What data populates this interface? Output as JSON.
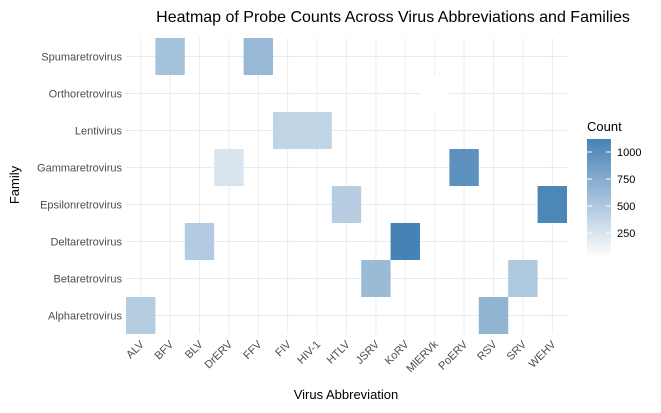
{
  "chart_data": {
    "type": "heatmap",
    "title": "Heatmap of Probe Counts Across Virus Abbreviations and Families",
    "xlabel": "Virus Abbreviation",
    "ylabel": "Family",
    "x_categories": [
      "ALV",
      "BFV",
      "BLV",
      "DrERV",
      "FFV",
      "FIV",
      "HIV-1",
      "HTLV",
      "JSRV",
      "KoRV",
      "MlERVk",
      "PoERV",
      "RSV",
      "SRV",
      "WEHV"
    ],
    "y_categories": [
      "Alpharetrovirus",
      "Betaretrovirus",
      "Deltaretrovirus",
      "Epsilonretrovirus",
      "Gammaretrovirus",
      "Lentivirus",
      "Orthoretrovirus",
      "Spumaretrovirus"
    ],
    "cells": [
      {
        "x": "BFV",
        "y": "Spumaretrovirus",
        "value": 560
      },
      {
        "x": "FFV",
        "y": "Spumaretrovirus",
        "value": 640
      },
      {
        "x": "MlERVk",
        "y": "Orthoretrovirus",
        "value": 20
      },
      {
        "x": "FIV",
        "y": "Lentivirus",
        "value": 400
      },
      {
        "x": "HIV-1",
        "y": "Lentivirus",
        "value": 400
      },
      {
        "x": "DrERV",
        "y": "Gammaretrovirus",
        "value": 250
      },
      {
        "x": "PoERV",
        "y": "Gammaretrovirus",
        "value": 980
      },
      {
        "x": "HTLV",
        "y": "Epsilonretrovirus",
        "value": 450
      },
      {
        "x": "WEHV",
        "y": "Epsilonretrovirus",
        "value": 1080
      },
      {
        "x": "BLV",
        "y": "Deltaretrovirus",
        "value": 480
      },
      {
        "x": "KoRV",
        "y": "Deltaretrovirus",
        "value": 1120
      },
      {
        "x": "JSRV",
        "y": "Betaretrovirus",
        "value": 620
      },
      {
        "x": "SRV",
        "y": "Betaretrovirus",
        "value": 500
      },
      {
        "x": "ALV",
        "y": "Alpharetrovirus",
        "value": 460
      },
      {
        "x": "RSV",
        "y": "Alpharetrovirus",
        "value": 680
      }
    ],
    "legend": {
      "title": "Count",
      "ticks": [
        250,
        500,
        750,
        1000
      ],
      "range": [
        20,
        1120
      ],
      "low_color": "#ffffff",
      "high_color": "#4682b4",
      "placement": "right"
    },
    "grid": true
  }
}
